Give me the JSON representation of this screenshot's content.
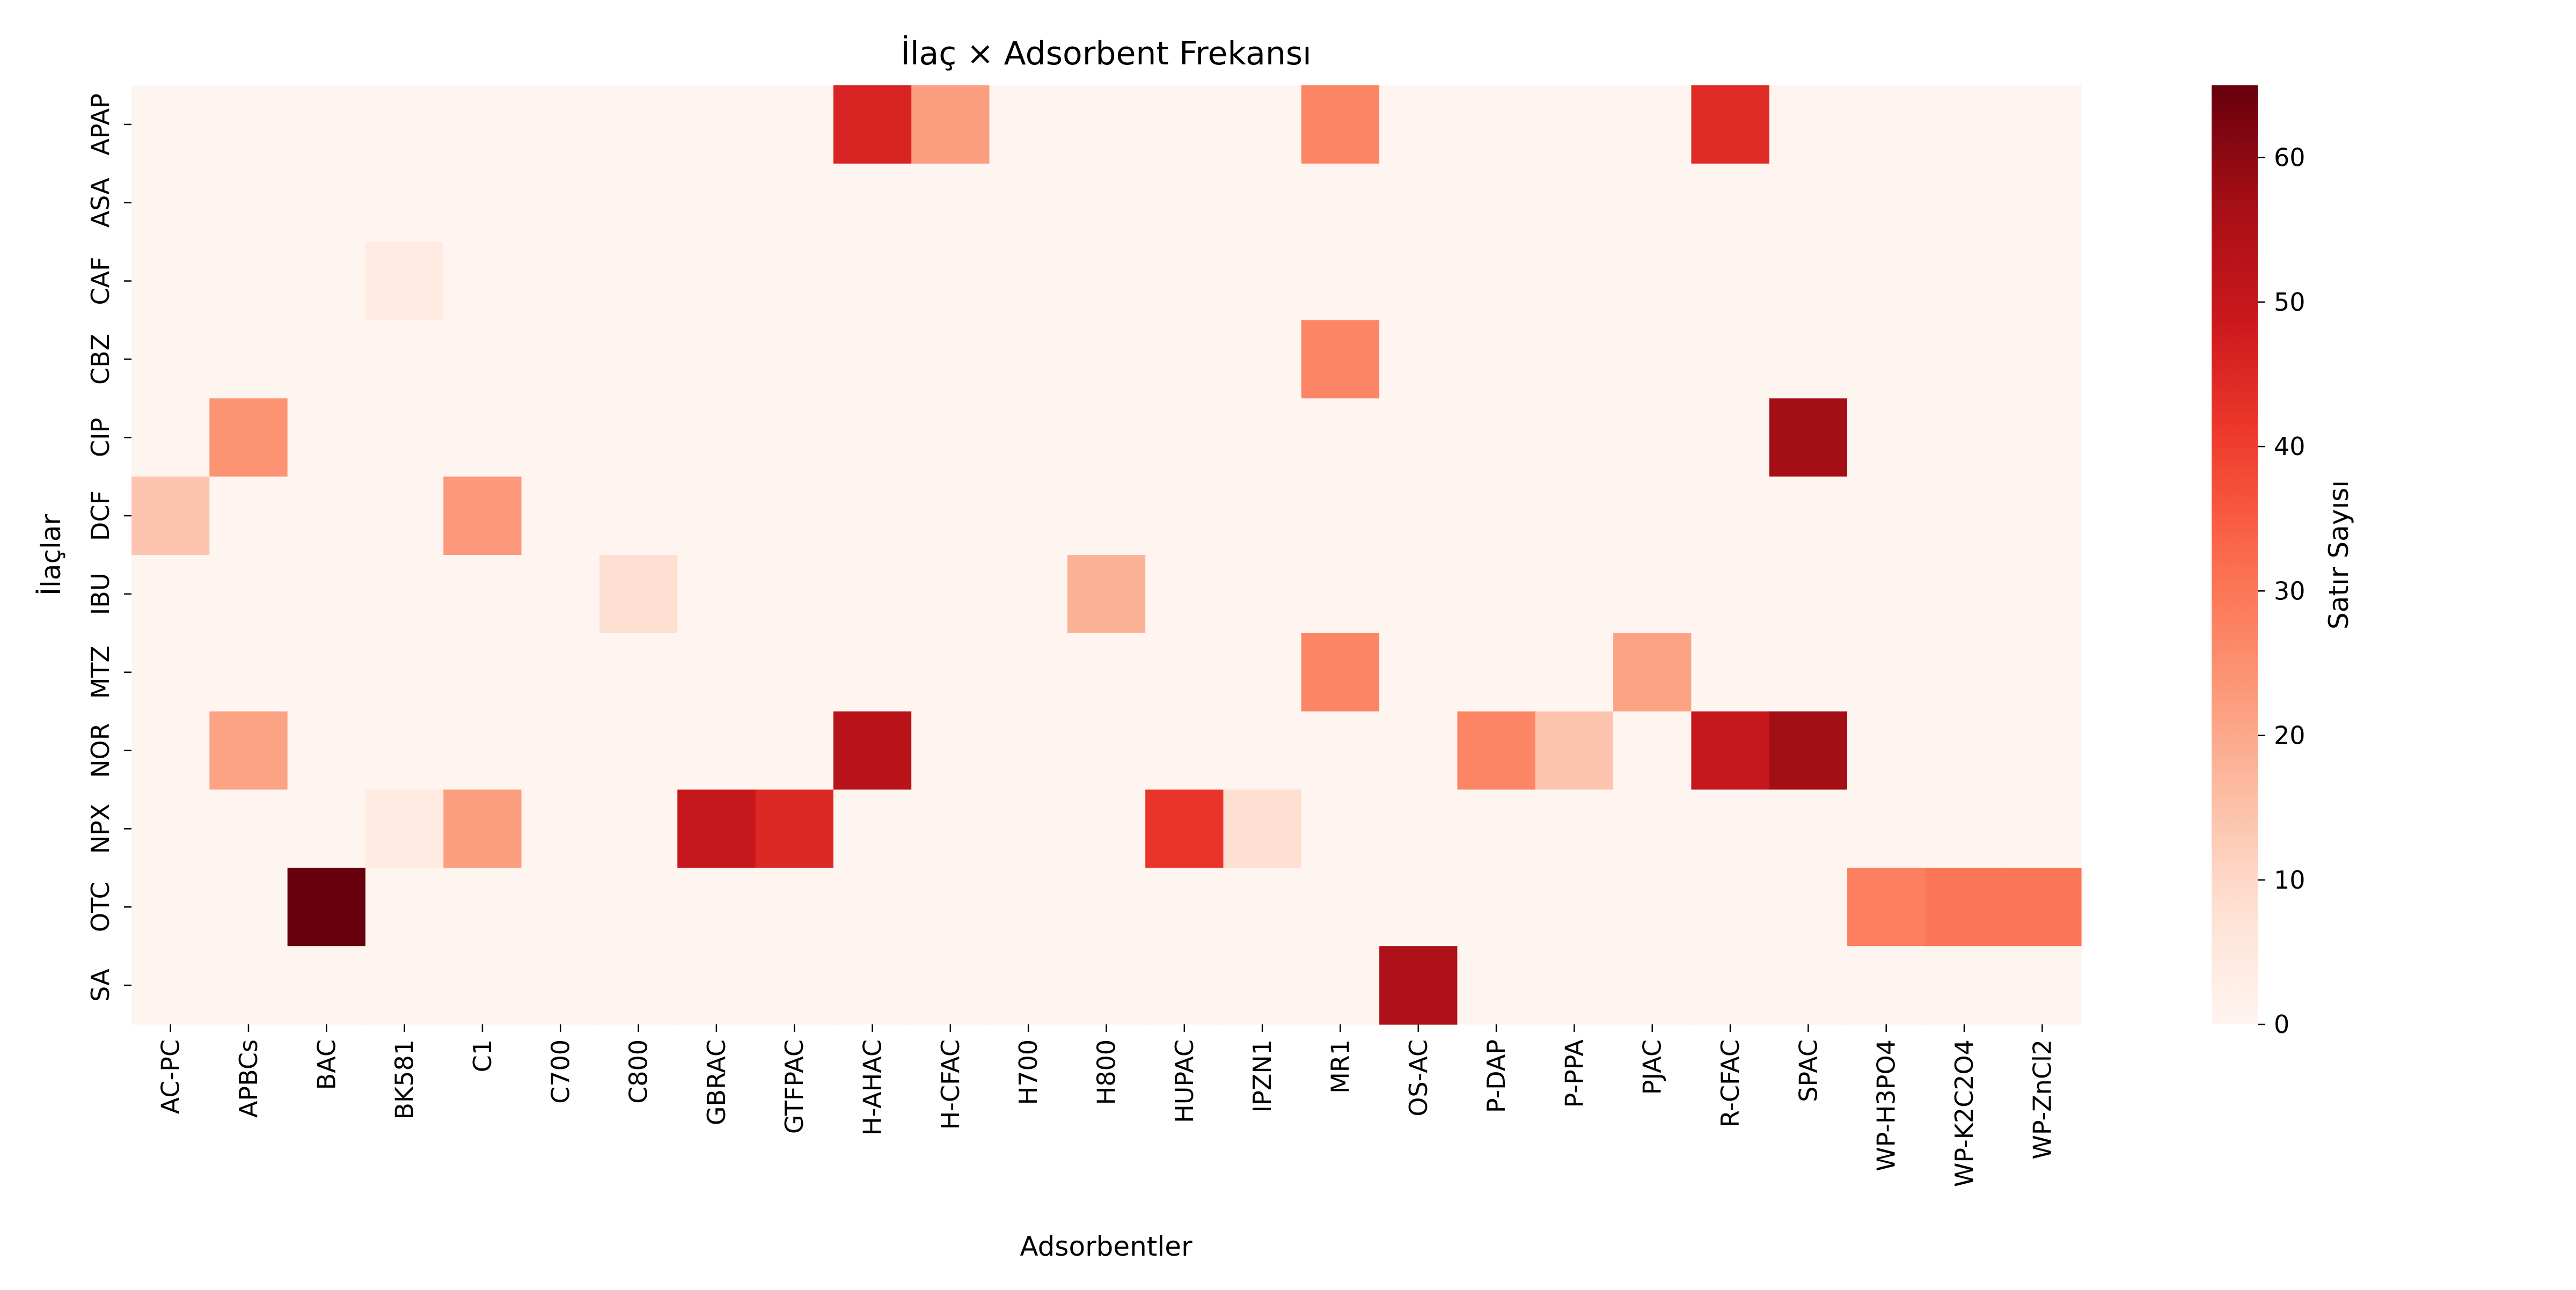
{
  "chart_data": {
    "type": "heatmap",
    "title": "İlaç × Adsorbent Frekansı",
    "xlabel": "Adsorbentler",
    "ylabel": "İlaçlar",
    "colorbar_label": "Satır Sayısı",
    "colorbar_ticks": [
      0,
      10,
      20,
      30,
      40,
      50,
      60
    ],
    "value_range": [
      0,
      65
    ],
    "colormap": "Reds",
    "colormap_stops": [
      "#fff5f0",
      "#fee0d2",
      "#fcbba1",
      "#fc9272",
      "#fb6a4a",
      "#ef3b2c",
      "#cb181d",
      "#a50f15",
      "#67000d"
    ],
    "x_categories": [
      "AC-PC",
      "APBCs",
      "BAC",
      "BK581",
      "C1",
      "C700",
      "C800",
      "GBRAC",
      "GTFPAC",
      "H-AHAC",
      "H-CFAC",
      "H700",
      "H800",
      "HUPAC",
      "IPZN1",
      "MR1",
      "OS-AC",
      "P-DAP",
      "P-PPA",
      "PJAC",
      "R-CFAC",
      "SPAC",
      "WP-H3PO4",
      "WP-K2C2O4",
      "WP-ZnCl2"
    ],
    "y_categories": [
      "APAP",
      "ASA",
      "CAF",
      "CBZ",
      "CIP",
      "DCF",
      "IBU",
      "MTZ",
      "NOR",
      "NPX",
      "OTC",
      "SA"
    ],
    "values": [
      [
        0,
        0,
        0,
        0,
        0,
        0,
        0,
        0,
        0,
        46,
        22,
        0,
        0,
        0,
        0,
        27,
        0,
        0,
        0,
        0,
        44,
        0,
        0,
        0,
        0
      ],
      [
        0,
        0,
        0,
        0,
        0,
        0,
        0,
        0,
        0,
        0,
        0,
        0,
        0,
        0,
        0,
        0,
        0,
        0,
        0,
        0,
        0,
        0,
        0,
        0,
        0
      ],
      [
        0,
        0,
        0,
        4,
        0,
        0,
        0,
        0,
        0,
        0,
        0,
        0,
        0,
        0,
        0,
        0,
        0,
        0,
        0,
        0,
        0,
        0,
        0,
        0,
        0
      ],
      [
        0,
        0,
        0,
        0,
        0,
        0,
        0,
        0,
        0,
        0,
        0,
        0,
        0,
        0,
        0,
        27,
        0,
        0,
        0,
        0,
        0,
        0,
        0,
        0,
        0
      ],
      [
        0,
        24,
        0,
        0,
        0,
        0,
        0,
        0,
        0,
        0,
        0,
        0,
        0,
        0,
        0,
        0,
        0,
        0,
        0,
        0,
        0,
        57,
        0,
        0,
        0
      ],
      [
        14,
        0,
        0,
        0,
        23,
        0,
        0,
        0,
        0,
        0,
        0,
        0,
        0,
        0,
        0,
        0,
        0,
        0,
        0,
        0,
        0,
        0,
        0,
        0,
        0
      ],
      [
        0,
        0,
        0,
        0,
        0,
        0,
        8,
        0,
        0,
        0,
        0,
        0,
        18,
        0,
        0,
        0,
        0,
        0,
        0,
        0,
        0,
        0,
        0,
        0,
        0
      ],
      [
        0,
        0,
        0,
        0,
        0,
        0,
        0,
        0,
        0,
        0,
        0,
        0,
        0,
        0,
        0,
        27,
        0,
        0,
        0,
        21,
        0,
        0,
        0,
        0,
        0
      ],
      [
        0,
        21,
        0,
        0,
        0,
        0,
        0,
        0,
        0,
        53,
        0,
        0,
        0,
        0,
        0,
        0,
        0,
        27,
        14,
        0,
        50,
        57,
        0,
        0,
        0
      ],
      [
        0,
        0,
        0,
        4,
        22,
        0,
        0,
        50,
        45,
        0,
        0,
        0,
        0,
        42,
        8,
        0,
        0,
        0,
        0,
        0,
        0,
        0,
        0,
        0,
        0
      ],
      [
        0,
        0,
        65,
        0,
        0,
        0,
        0,
        0,
        0,
        0,
        0,
        0,
        0,
        0,
        0,
        0,
        0,
        0,
        0,
        0,
        0,
        0,
        28,
        30,
        30
      ],
      [
        0,
        0,
        0,
        0,
        0,
        0,
        0,
        0,
        0,
        0,
        0,
        0,
        0,
        0,
        0,
        0,
        55,
        0,
        0,
        0,
        0,
        0,
        0,
        0,
        0
      ]
    ]
  }
}
